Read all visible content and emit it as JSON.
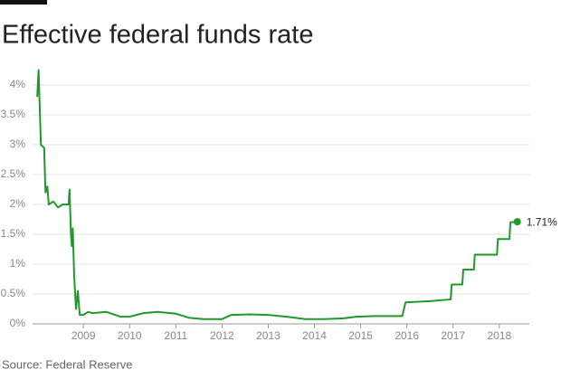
{
  "chart_data": {
    "type": "line",
    "title": "Effective federal funds rate",
    "source": "Source: Federal Reserve",
    "x": [
      2008.0,
      2008.03,
      2008.08,
      2008.15,
      2008.18,
      2008.22,
      2008.25,
      2008.35,
      2008.45,
      2008.55,
      2008.68,
      2008.7,
      2008.73,
      2008.75,
      2008.77,
      2008.8,
      2008.84,
      2008.88,
      2008.92,
      2009.0,
      2009.1,
      2009.2,
      2009.5,
      2009.8,
      2010.0,
      2010.3,
      2010.6,
      2011.0,
      2011.3,
      2011.6,
      2012.0,
      2012.2,
      2012.6,
      2013.0,
      2013.4,
      2013.8,
      2014.2,
      2014.6,
      2014.9,
      2015.3,
      2015.9,
      2015.97,
      2016.5,
      2016.95,
      2016.97,
      2017.2,
      2017.22,
      2017.45,
      2017.47,
      2017.95,
      2017.97,
      2018.22,
      2018.24,
      2018.39
    ],
    "values": [
      3.8,
      4.25,
      3.0,
      2.95,
      2.2,
      2.3,
      2.0,
      2.05,
      1.95,
      2.0,
      2.0,
      2.25,
      1.5,
      1.3,
      1.6,
      0.8,
      0.25,
      0.55,
      0.15,
      0.15,
      0.2,
      0.18,
      0.2,
      0.12,
      0.12,
      0.18,
      0.2,
      0.17,
      0.1,
      0.08,
      0.08,
      0.15,
      0.16,
      0.15,
      0.12,
      0.08,
      0.08,
      0.09,
      0.12,
      0.13,
      0.13,
      0.36,
      0.38,
      0.41,
      0.66,
      0.66,
      0.91,
      0.91,
      1.16,
      1.16,
      1.42,
      1.42,
      1.7,
      1.71
    ],
    "value_labels": [
      null,
      null,
      null,
      null,
      null,
      null,
      null,
      null,
      null,
      null,
      null,
      null,
      null,
      null,
      null,
      null,
      null,
      null,
      null,
      null,
      null,
      null,
      null,
      null,
      null,
      null,
      null,
      null,
      null,
      null,
      null,
      null,
      null,
      null,
      null,
      null,
      null,
      null,
      null,
      null,
      null,
      null,
      null,
      null,
      null,
      null,
      null,
      null,
      null,
      null,
      null,
      null,
      null,
      "1.71%"
    ],
    "color": "#1e9a2c",
    "xlim": [
      2007.9,
      2018.65
    ],
    "xticks": [
      2009,
      2010,
      2011,
      2012,
      2013,
      2014,
      2015,
      2016,
      2017,
      2018
    ],
    "ylim": [
      0,
      4.4
    ],
    "yticks": [
      {
        "value": 0,
        "label": "0%"
      },
      {
        "value": 0.5,
        "label": "0.5%"
      },
      {
        "value": 1,
        "label": "1%"
      },
      {
        "value": 1.5,
        "label": "1.5%"
      },
      {
        "value": 2,
        "label": "2%"
      },
      {
        "value": 2.5,
        "label": "2.5%"
      },
      {
        "value": 3,
        "label": "3%"
      },
      {
        "value": 3.5,
        "label": "3.5%"
      },
      {
        "value": 4,
        "label": "4%"
      }
    ],
    "grid": true
  }
}
